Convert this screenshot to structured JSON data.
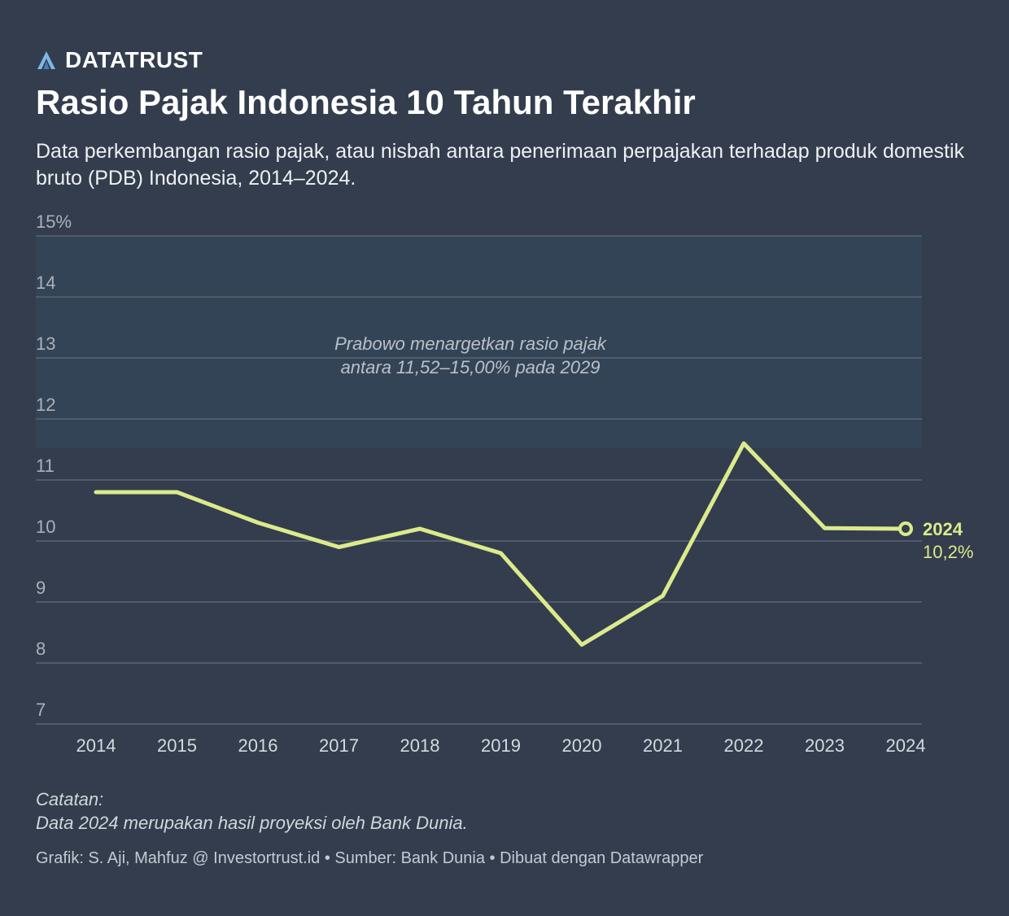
{
  "brand": {
    "name": "DATATRUST",
    "icon": "a-logo-icon",
    "icon_color": "#7ab8e8"
  },
  "title": "Rasio Pajak Indonesia 10 Tahun Terakhir",
  "subtitle": "Data perkembangan rasio pajak, atau nisbah antara penerimaan perpajakan terhadap produk domestik bruto (PDB) Indonesia, 2014–2024.",
  "colors": {
    "background": "#333d4d",
    "line": "#dcea8c",
    "band": "#344457",
    "grid": "#5a6473"
  },
  "chart_data": {
    "type": "line",
    "x": [
      2014,
      2015,
      2016,
      2017,
      2018,
      2019,
      2020,
      2021,
      2022,
      2023,
      2024
    ],
    "series": [
      {
        "values": [
          10.8,
          10.8,
          10.3,
          9.9,
          10.2,
          9.8,
          8.3,
          9.1,
          11.6,
          10.21,
          10.2
        ]
      }
    ],
    "ylim": [
      7,
      15
    ],
    "yticks": [
      7,
      8,
      9,
      10,
      11,
      12,
      13,
      14,
      15
    ],
    "ytick_labels": [
      "7",
      "8",
      "9",
      "10",
      "11",
      "12",
      "13",
      "14",
      "15%"
    ],
    "xtick_labels": [
      "2014",
      "2015",
      "2016",
      "2017",
      "2018",
      "2019",
      "2020",
      "2021",
      "2022",
      "2023",
      "2024"
    ],
    "target_band": [
      11.52,
      15.0
    ],
    "band_annotation": [
      "Prabowo menargetkan rasio pajak",
      "antara 11,52–15,00% pada 2029"
    ],
    "end_label": {
      "year": "2024",
      "value": "10,2%"
    },
    "grid": true
  },
  "notes": {
    "heading": "Catatan:",
    "text": "Data 2024 merupakan hasil proyeksi oleh Bank Dunia."
  },
  "footer": "Grafik: S. Aji, Mahfuz @ Investortrust.id • Sumber: Bank Dunia • Dibuat dengan Datawrapper"
}
